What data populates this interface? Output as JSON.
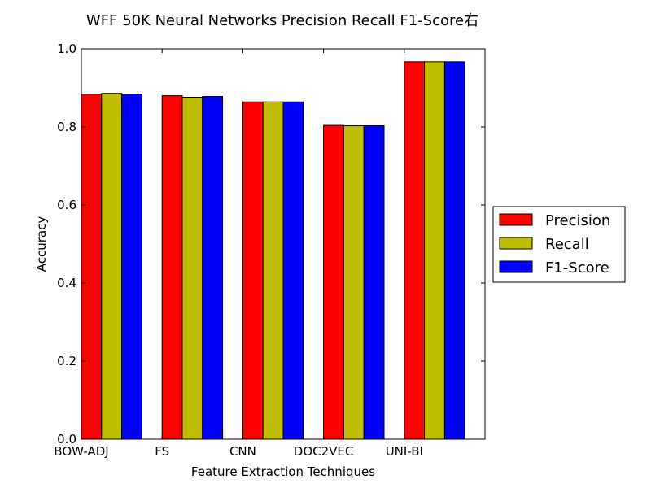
{
  "chart_data": {
    "type": "bar",
    "title": "WFF 50K Neural Networks Precision Recall F1-Score右",
    "xlabel": "Feature Extraction Techniques",
    "ylabel": "Accuracy",
    "ylim": [
      0,
      1.0
    ],
    "yticks": [
      "0.0",
      "0.2",
      "0.4",
      "0.6",
      "0.8",
      "1.0"
    ],
    "categories": [
      "BOW-ADJ",
      "FS",
      "CNN",
      "DOC2VEC",
      "UNI-BI"
    ],
    "series": [
      {
        "name": "Precision",
        "color": "#ff0000",
        "values": [
          0.884,
          0.88,
          0.864,
          0.804,
          0.967
        ]
      },
      {
        "name": "Recall",
        "color": "#bfbf00",
        "values": [
          0.886,
          0.876,
          0.864,
          0.803,
          0.967
        ]
      },
      {
        "name": "F1-Score",
        "color": "#0000ff",
        "values": [
          0.884,
          0.878,
          0.864,
          0.803,
          0.967
        ]
      }
    ],
    "grid": false,
    "legend_position": "right"
  }
}
